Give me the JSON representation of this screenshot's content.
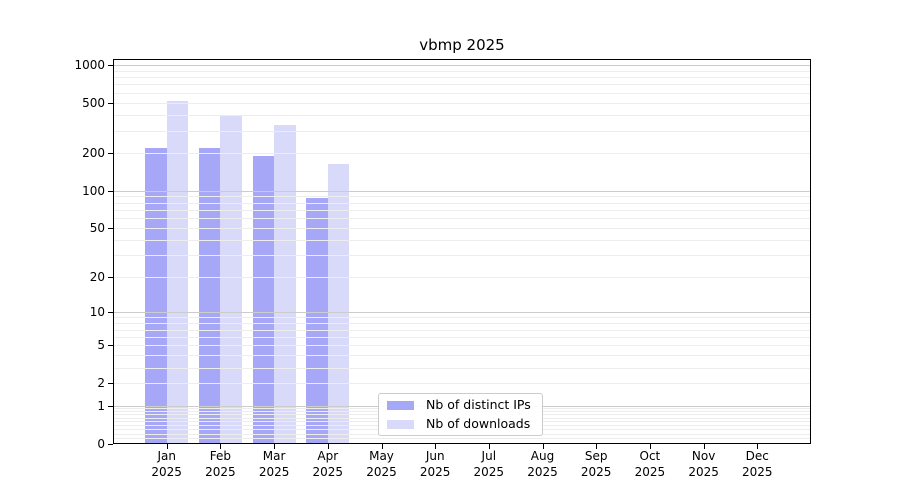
{
  "figure": {
    "title": "vbmp 2025",
    "background": "#ffffff"
  },
  "chart_data": {
    "type": "bar",
    "title": "vbmp 2025",
    "y_scale": "log1p",
    "ylim": [
      0,
      1120
    ],
    "grid": "horizontal, major and minor gridlines",
    "legend_position": "inside plot, lower-center-left",
    "y_ticks": [
      0,
      1,
      2,
      5,
      10,
      20,
      50,
      100,
      200,
      500,
      1000
    ],
    "y_major_gridline_values": [
      1,
      10,
      100,
      1000
    ],
    "categories": [
      {
        "month": "Jan",
        "year": "2025"
      },
      {
        "month": "Feb",
        "year": "2025"
      },
      {
        "month": "Mar",
        "year": "2025"
      },
      {
        "month": "Apr",
        "year": "2025"
      },
      {
        "month": "May",
        "year": "2025"
      },
      {
        "month": "Jun",
        "year": "2025"
      },
      {
        "month": "Jul",
        "year": "2025"
      },
      {
        "month": "Aug",
        "year": "2025"
      },
      {
        "month": "Sep",
        "year": "2025"
      },
      {
        "month": "Oct",
        "year": "2025"
      },
      {
        "month": "Nov",
        "year": "2025"
      },
      {
        "month": "Dec",
        "year": "2025"
      }
    ],
    "series": [
      {
        "name": "Nb of distinct IPs",
        "color": "#a7a7f8",
        "values": [
          220,
          220,
          190,
          87,
          0,
          0,
          0,
          0,
          0,
          0,
          0,
          0
        ]
      },
      {
        "name": "Nb of downloads",
        "color": "#d9d9f9",
        "values": [
          520,
          400,
          335,
          162,
          0,
          0,
          0,
          0,
          0,
          0,
          0,
          0
        ]
      }
    ]
  },
  "colors": {
    "axis": "#000000",
    "major_grid": "#cccccc",
    "minor_grid": "#ededed",
    "legend_border": "#cccccc",
    "text": "#000000"
  }
}
